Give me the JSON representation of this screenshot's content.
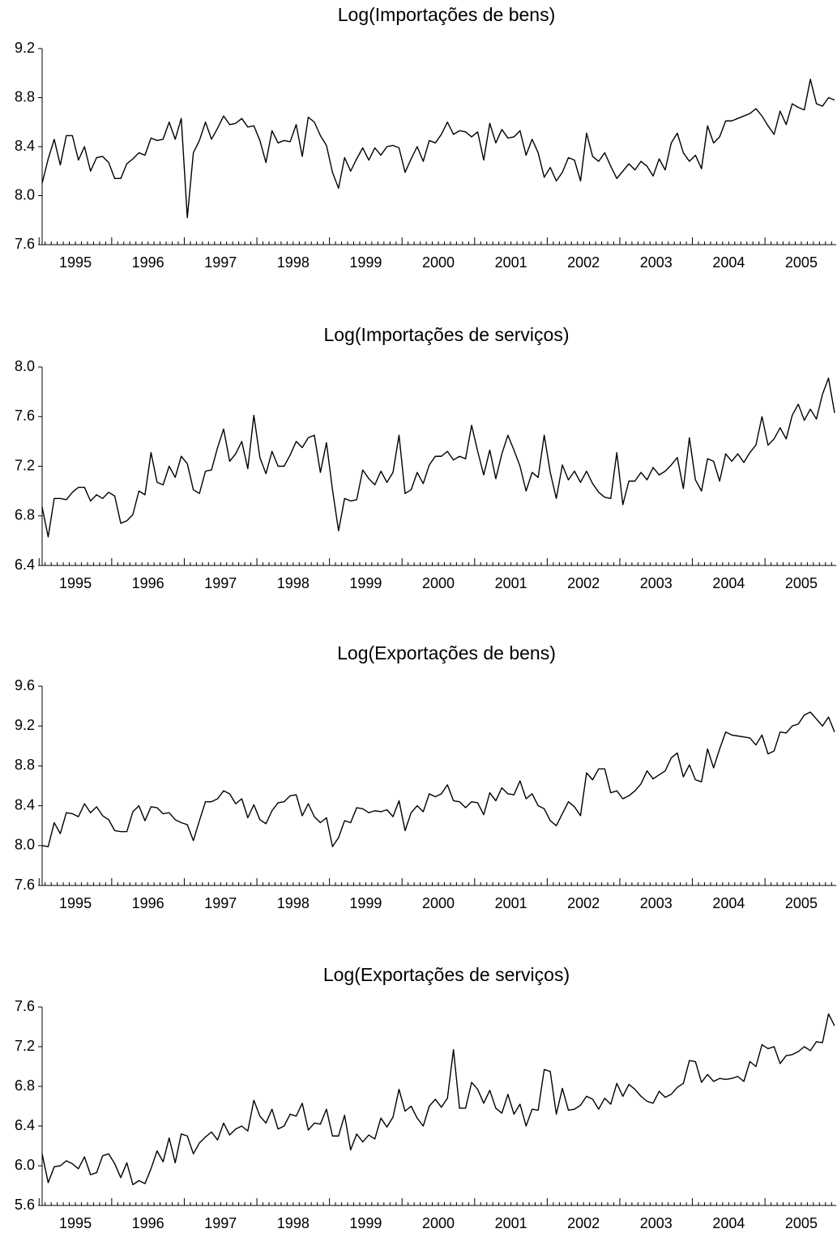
{
  "chart_data": [
    {
      "type": "line",
      "title": "Log(Importações de bens)",
      "categories": [
        "1995",
        null,
        null,
        null,
        null,
        null,
        null,
        null,
        null,
        null,
        null,
        null,
        "1996",
        null,
        null,
        null,
        null,
        null,
        null,
        null,
        null,
        null,
        null,
        null,
        "1997",
        null,
        null,
        null,
        null,
        null,
        null,
        null,
        null,
        null,
        null,
        null,
        "1998",
        null,
        null,
        null,
        null,
        null,
        null,
        null,
        null,
        null,
        null,
        null,
        "1999",
        null,
        null,
        null,
        null,
        null,
        null,
        null,
        null,
        null,
        null,
        null,
        "2000",
        null,
        null,
        null,
        null,
        null,
        null,
        null,
        null,
        null,
        null,
        null,
        "2001",
        null,
        null,
        null,
        null,
        null,
        null,
        null,
        null,
        null,
        null,
        null,
        "2002",
        null,
        null,
        null,
        null,
        null,
        null,
        null,
        null,
        null,
        null,
        null,
        "2003",
        null,
        null,
        null,
        null,
        null,
        null,
        null,
        null,
        null,
        null,
        null,
        "2004",
        null,
        null,
        null,
        null,
        null,
        null,
        null,
        null,
        null,
        null,
        null,
        "2005",
        null,
        null,
        null,
        null,
        null,
        null,
        null,
        null,
        null,
        null,
        null
      ],
      "values": [
        8.1,
        8.3,
        8.46,
        8.25,
        8.49,
        8.49,
        8.29,
        8.4,
        8.2,
        8.31,
        8.32,
        8.27,
        8.14,
        8.14,
        8.26,
        8.3,
        8.35,
        8.33,
        8.47,
        8.45,
        8.46,
        8.6,
        8.46,
        8.63,
        7.82,
        8.35,
        8.45,
        8.6,
        8.46,
        8.55,
        8.65,
        8.58,
        8.59,
        8.63,
        8.56,
        8.57,
        8.45,
        8.27,
        8.53,
        8.43,
        8.45,
        8.44,
        8.58,
        8.32,
        8.64,
        8.6,
        8.49,
        8.41,
        8.19,
        8.06,
        8.31,
        8.2,
        8.3,
        8.39,
        8.29,
        8.39,
        8.33,
        8.4,
        8.41,
        8.39,
        8.19,
        8.3,
        8.4,
        8.28,
        8.45,
        8.43,
        8.5,
        8.6,
        8.5,
        8.53,
        8.52,
        8.48,
        8.52,
        8.29,
        8.59,
        8.43,
        8.54,
        8.47,
        8.48,
        8.53,
        8.33,
        8.46,
        8.35,
        8.15,
        8.23,
        8.12,
        8.19,
        8.31,
        8.29,
        8.12,
        8.51,
        8.32,
        8.28,
        8.35,
        8.24,
        8.14,
        8.2,
        8.26,
        8.21,
        8.28,
        8.24,
        8.16,
        8.3,
        8.21,
        8.43,
        8.51,
        8.35,
        8.28,
        8.33,
        8.22,
        8.57,
        8.43,
        8.48,
        8.61,
        8.61,
        8.63,
        8.65,
        8.67,
        8.71,
        8.65,
        8.57,
        8.5,
        8.69,
        8.58,
        8.75,
        8.72,
        8.7,
        8.95,
        8.75,
        8.73,
        8.8,
        8.78
      ],
      "color": "#000000",
      "ylim": [
        7.6,
        9.2
      ],
      "yticks": [
        {
          "value": 7.6,
          "label": "7.6"
        },
        {
          "value": 8,
          "label": "8.0"
        },
        8.4,
        8.8,
        9.2
      ]
    },
    {
      "type": "line",
      "title": "Log(Importações de serviços)",
      "categories": [
        "1995",
        null,
        null,
        null,
        null,
        null,
        null,
        null,
        null,
        null,
        null,
        null,
        "1996",
        null,
        null,
        null,
        null,
        null,
        null,
        null,
        null,
        null,
        null,
        null,
        "1997",
        null,
        null,
        null,
        null,
        null,
        null,
        null,
        null,
        null,
        null,
        null,
        "1998",
        null,
        null,
        null,
        null,
        null,
        null,
        null,
        null,
        null,
        null,
        null,
        "1999",
        null,
        null,
        null,
        null,
        null,
        null,
        null,
        null,
        null,
        null,
        null,
        "2000",
        null,
        null,
        null,
        null,
        null,
        null,
        null,
        null,
        null,
        null,
        null,
        "2001",
        null,
        null,
        null,
        null,
        null,
        null,
        null,
        null,
        null,
        null,
        null,
        "2002",
        null,
        null,
        null,
        null,
        null,
        null,
        null,
        null,
        null,
        null,
        null,
        "2003",
        null,
        null,
        null,
        null,
        null,
        null,
        null,
        null,
        null,
        null,
        null,
        "2004",
        null,
        null,
        null,
        null,
        null,
        null,
        null,
        null,
        null,
        null,
        null,
        "2005",
        null,
        null,
        null,
        null,
        null,
        null,
        null,
        null,
        null,
        null,
        null
      ],
      "values": [
        6.87,
        6.63,
        6.94,
        6.94,
        6.93,
        6.99,
        7.03,
        7.03,
        6.92,
        6.97,
        6.94,
        6.99,
        6.96,
        6.74,
        6.76,
        6.81,
        7.0,
        6.97,
        7.31,
        7.07,
        7.05,
        7.2,
        7.11,
        7.28,
        7.22,
        7.01,
        6.98,
        7.16,
        7.17,
        7.35,
        7.5,
        7.24,
        7.3,
        7.4,
        7.18,
        7.61,
        7.27,
        7.14,
        7.32,
        7.2,
        7.2,
        7.29,
        7.4,
        7.35,
        7.43,
        7.45,
        7.15,
        7.39,
        7.01,
        6.68,
        6.94,
        6.92,
        6.93,
        7.17,
        7.1,
        7.05,
        7.16,
        7.07,
        7.15,
        7.45,
        6.98,
        7.01,
        7.15,
        7.06,
        7.21,
        7.28,
        7.28,
        7.32,
        7.25,
        7.28,
        7.26,
        7.53,
        7.32,
        7.13,
        7.33,
        7.1,
        7.3,
        7.45,
        7.33,
        7.2,
        7.0,
        7.15,
        7.11,
        7.45,
        7.15,
        6.94,
        7.21,
        7.09,
        7.16,
        7.07,
        7.16,
        7.06,
        6.99,
        6.95,
        6.94,
        7.31,
        6.89,
        7.08,
        7.08,
        7.15,
        7.09,
        7.19,
        7.13,
        7.16,
        7.21,
        7.27,
        7.02,
        7.43,
        7.09,
        7.0,
        7.26,
        7.24,
        7.08,
        7.3,
        7.24,
        7.3,
        7.23,
        7.31,
        7.37,
        7.6,
        7.37,
        7.42,
        7.51,
        7.42,
        7.61,
        7.7,
        7.57,
        7.66,
        7.58,
        7.78,
        7.91,
        7.63
      ],
      "color": "#000000",
      "ylim": [
        6.4,
        8.0
      ],
      "yticks": [
        6.4,
        6.8,
        7.2,
        7.6,
        {
          "value": 8,
          "label": "8.0"
        }
      ]
    },
    {
      "type": "line",
      "title": "Log(Exportações de bens)",
      "categories": [
        "1995",
        null,
        null,
        null,
        null,
        null,
        null,
        null,
        null,
        null,
        null,
        null,
        "1996",
        null,
        null,
        null,
        null,
        null,
        null,
        null,
        null,
        null,
        null,
        null,
        "1997",
        null,
        null,
        null,
        null,
        null,
        null,
        null,
        null,
        null,
        null,
        null,
        "1998",
        null,
        null,
        null,
        null,
        null,
        null,
        null,
        null,
        null,
        null,
        null,
        "1999",
        null,
        null,
        null,
        null,
        null,
        null,
        null,
        null,
        null,
        null,
        null,
        "2000",
        null,
        null,
        null,
        null,
        null,
        null,
        null,
        null,
        null,
        null,
        null,
        "2001",
        null,
        null,
        null,
        null,
        null,
        null,
        null,
        null,
        null,
        null,
        null,
        "2002",
        null,
        null,
        null,
        null,
        null,
        null,
        null,
        null,
        null,
        null,
        null,
        "2003",
        null,
        null,
        null,
        null,
        null,
        null,
        null,
        null,
        null,
        null,
        null,
        "2004",
        null,
        null,
        null,
        null,
        null,
        null,
        null,
        null,
        null,
        null,
        null,
        "2005",
        null,
        null,
        null,
        null,
        null,
        null,
        null,
        null,
        null,
        null,
        null
      ],
      "values": [
        8.0,
        7.99,
        8.23,
        8.12,
        8.33,
        8.32,
        8.29,
        8.42,
        8.33,
        8.39,
        8.3,
        8.26,
        8.15,
        8.14,
        8.14,
        8.34,
        8.4,
        8.25,
        8.39,
        8.38,
        8.32,
        8.33,
        8.26,
        8.23,
        8.21,
        8.05,
        8.25,
        8.44,
        8.44,
        8.47,
        8.55,
        8.52,
        8.42,
        8.47,
        8.28,
        8.41,
        8.26,
        8.22,
        8.35,
        8.43,
        8.44,
        8.5,
        8.51,
        8.3,
        8.42,
        8.29,
        8.23,
        8.28,
        7.99,
        8.08,
        8.25,
        8.23,
        8.38,
        8.37,
        8.33,
        8.35,
        8.34,
        8.36,
        8.29,
        8.45,
        8.15,
        8.33,
        8.4,
        8.34,
        8.52,
        8.49,
        8.52,
        8.61,
        8.45,
        8.44,
        8.38,
        8.44,
        8.43,
        8.31,
        8.53,
        8.45,
        8.58,
        8.52,
        8.51,
        8.65,
        8.47,
        8.52,
        8.4,
        8.37,
        8.25,
        8.2,
        8.32,
        8.44,
        8.39,
        8.3,
        8.73,
        8.66,
        8.77,
        8.77,
        8.53,
        8.55,
        8.47,
        8.5,
        8.55,
        8.62,
        8.75,
        8.67,
        8.71,
        8.75,
        8.88,
        8.93,
        8.69,
        8.81,
        8.66,
        8.64,
        8.97,
        8.78,
        8.97,
        9.14,
        9.11,
        9.1,
        9.09,
        9.08,
        9.01,
        9.11,
        8.92,
        8.95,
        9.14,
        9.13,
        9.2,
        9.22,
        9.31,
        9.34,
        9.27,
        9.2,
        9.29,
        9.14
      ],
      "color": "#000000",
      "ylim": [
        7.6,
        9.6
      ],
      "yticks": [
        {
          "value": 7.6,
          "label": "7.6"
        },
        {
          "value": 8,
          "label": "8.0"
        },
        8.4,
        8.8,
        9.2,
        9.6
      ]
    },
    {
      "type": "line",
      "title": "Log(Exportações de serviços)",
      "categories": [
        "1995",
        null,
        null,
        null,
        null,
        null,
        null,
        null,
        null,
        null,
        null,
        null,
        "1996",
        null,
        null,
        null,
        null,
        null,
        null,
        null,
        null,
        null,
        null,
        null,
        "1997",
        null,
        null,
        null,
        null,
        null,
        null,
        null,
        null,
        null,
        null,
        null,
        "1998",
        null,
        null,
        null,
        null,
        null,
        null,
        null,
        null,
        null,
        null,
        null,
        "1999",
        null,
        null,
        null,
        null,
        null,
        null,
        null,
        null,
        null,
        null,
        null,
        "2000",
        null,
        null,
        null,
        null,
        null,
        null,
        null,
        null,
        null,
        null,
        null,
        "2001",
        null,
        null,
        null,
        null,
        null,
        null,
        null,
        null,
        null,
        null,
        null,
        "2002",
        null,
        null,
        null,
        null,
        null,
        null,
        null,
        null,
        null,
        null,
        null,
        "2003",
        null,
        null,
        null,
        null,
        null,
        null,
        null,
        null,
        null,
        null,
        null,
        "2004",
        null,
        null,
        null,
        null,
        null,
        null,
        null,
        null,
        null,
        null,
        null,
        "2005",
        null,
        null,
        null,
        null,
        null,
        null,
        null,
        null,
        null,
        null,
        null
      ],
      "values": [
        6.12,
        5.83,
        5.99,
        6.0,
        6.05,
        6.02,
        5.97,
        6.09,
        5.91,
        5.93,
        6.1,
        6.12,
        6.02,
        5.88,
        6.03,
        5.81,
        5.85,
        5.82,
        5.97,
        6.15,
        6.04,
        6.28,
        6.03,
        6.32,
        6.3,
        6.12,
        6.23,
        6.29,
        6.34,
        6.26,
        6.43,
        6.31,
        6.37,
        6.4,
        6.35,
        6.66,
        6.5,
        6.43,
        6.57,
        6.37,
        6.4,
        6.52,
        6.5,
        6.63,
        6.36,
        6.43,
        6.42,
        6.57,
        6.3,
        6.3,
        6.51,
        6.16,
        6.32,
        6.24,
        6.31,
        6.27,
        6.48,
        6.39,
        6.49,
        6.77,
        6.55,
        6.6,
        6.48,
        6.4,
        6.6,
        6.67,
        6.59,
        6.68,
        7.17,
        6.58,
        6.58,
        6.84,
        6.77,
        6.63,
        6.76,
        6.58,
        6.53,
        6.72,
        6.52,
        6.62,
        6.4,
        6.57,
        6.56,
        6.97,
        6.95,
        6.52,
        6.78,
        6.56,
        6.57,
        6.61,
        6.7,
        6.67,
        6.57,
        6.68,
        6.62,
        6.83,
        6.7,
        6.82,
        6.77,
        6.7,
        6.65,
        6.63,
        6.75,
        6.69,
        6.72,
        6.79,
        6.83,
        7.06,
        7.05,
        6.84,
        6.92,
        6.85,
        6.88,
        6.87,
        6.88,
        6.9,
        6.85,
        7.05,
        7.0,
        7.22,
        7.18,
        7.2,
        7.03,
        7.11,
        7.12,
        7.15,
        7.2,
        7.16,
        7.25,
        7.24,
        7.53,
        7.41
      ],
      "color": "#000000",
      "ylim": [
        5.6,
        7.6
      ],
      "yticks": [
        5.6,
        {
          "value": 6,
          "label": "6.0"
        },
        6.4,
        6.8,
        7.2,
        7.6
      ]
    }
  ]
}
